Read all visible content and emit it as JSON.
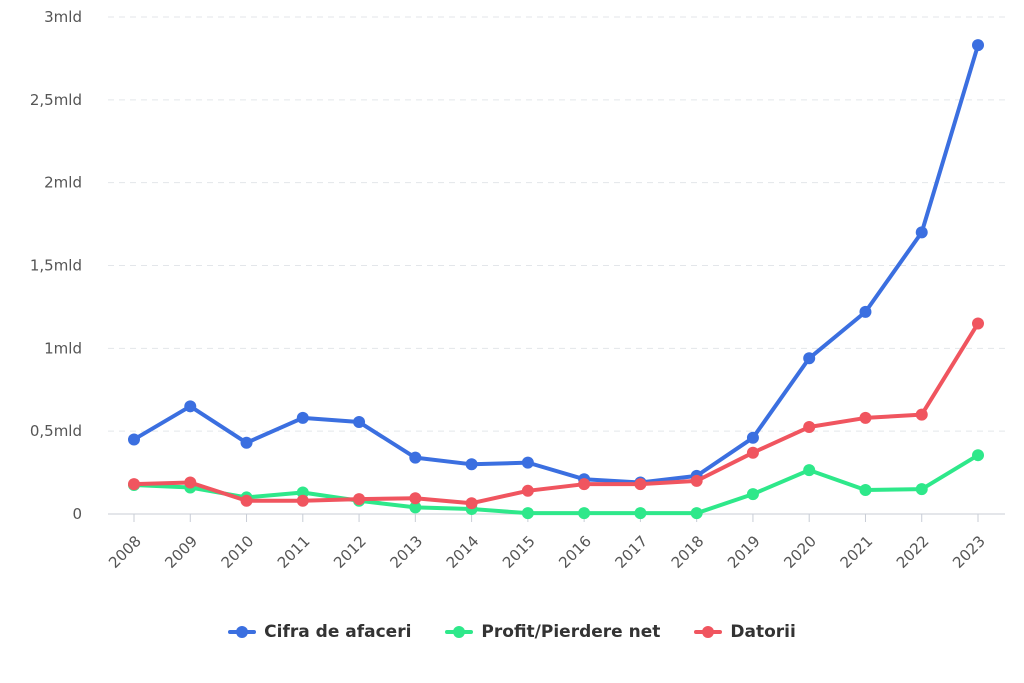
{
  "chart_data": {
    "type": "line",
    "title": "",
    "xlabel": "",
    "ylabel": "",
    "x": [
      "2008",
      "2009",
      "2010",
      "2011",
      "2012",
      "2013",
      "2014",
      "2015",
      "2016",
      "2017",
      "2018",
      "2019",
      "2020",
      "2021",
      "2022",
      "2023"
    ],
    "ylim": [
      0,
      3
    ],
    "yunit": "mld",
    "yticks": [
      0,
      0.5,
      1,
      1.5,
      2,
      2.5,
      3
    ],
    "ytick_labels": [
      "0",
      "0,5mld",
      "1mld",
      "1,5mld",
      "2mld",
      "2,5mld",
      "3mld"
    ],
    "grid": true,
    "legend_position": "bottom",
    "series": [
      {
        "name": "Cifra de afaceri",
        "color": "#3b6fe0",
        "values": [
          0.45,
          0.65,
          0.43,
          0.58,
          0.555,
          0.34,
          0.3,
          0.31,
          0.21,
          0.19,
          0.23,
          0.46,
          0.94,
          1.22,
          1.7,
          2.83
        ]
      },
      {
        "name": "Profit/Pierdere net",
        "color": "#2ee88a",
        "values": [
          0.175,
          0.16,
          0.1,
          0.13,
          0.08,
          0.04,
          0.03,
          0.005,
          0.005,
          0.005,
          0.005,
          0.12,
          0.265,
          0.145,
          0.15,
          0.355
        ]
      },
      {
        "name": "Datorii",
        "color": "#f0555f",
        "values": [
          0.18,
          0.19,
          0.08,
          0.08,
          0.09,
          0.095,
          0.065,
          0.14,
          0.18,
          0.18,
          0.2,
          0.37,
          0.525,
          0.58,
          0.6,
          1.15
        ]
      }
    ]
  }
}
